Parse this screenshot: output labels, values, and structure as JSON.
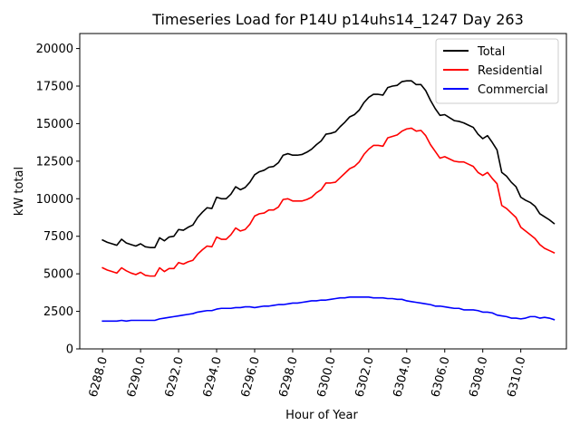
{
  "chart_data": {
    "type": "line",
    "title": "Timeseries Load for P14U p14uhs14_1247  Day 263",
    "xlabel": "Hour of Year",
    "ylabel": "kW total",
    "xlim": [
      6286.8,
      6312.4
    ],
    "ylim": [
      0,
      21000
    ],
    "grid": false,
    "legend_position": "top-right",
    "x_ticks": [
      6288,
      6290,
      6292,
      6294,
      6296,
      6298,
      6300,
      6302,
      6304,
      6306,
      6308,
      6310
    ],
    "x_tick_labels": [
      "6288.0",
      "6290.0",
      "6292.0",
      "6294.0",
      "6296.0",
      "6298.0",
      "6300.0",
      "6302.0",
      "6304.0",
      "6306.0",
      "6308.0",
      "6310.0"
    ],
    "y_ticks": [
      0,
      2500,
      5000,
      7500,
      10000,
      12500,
      15000,
      17500,
      20000
    ],
    "y_tick_labels": [
      "0",
      "2500",
      "5000",
      "7500",
      "10000",
      "12500",
      "15000",
      "17500",
      "20000"
    ],
    "x_start": 6288,
    "x_step": 0.25,
    "series": [
      {
        "name": "Total",
        "color": "#000000",
        "values": [
          7250,
          7100,
          7000,
          6900,
          7300,
          7050,
          6950,
          6850,
          7000,
          6800,
          6750,
          6750,
          7400,
          7200,
          7450,
          7500,
          7950,
          7900,
          8100,
          8250,
          8750,
          9100,
          9400,
          9350,
          10100,
          10000,
          10000,
          10300,
          10800,
          10600,
          10750,
          11100,
          11600,
          11800,
          11900,
          12100,
          12150,
          12400,
          12900,
          13000,
          12900,
          12900,
          12950,
          13100,
          13300,
          13600,
          13850,
          14300,
          14350,
          14450,
          14800,
          15100,
          15450,
          15600,
          15900,
          16400,
          16750,
          16950,
          16950,
          16900,
          17400,
          17500,
          17550,
          17800,
          17850,
          17850,
          17600,
          17600,
          17200,
          16550,
          16000,
          15550,
          15600,
          15400,
          15200,
          15150,
          15050,
          14900,
          14750,
          14300,
          14000,
          14200,
          13750,
          13250,
          11750,
          11500,
          11100,
          10800,
          10100,
          9900,
          9750,
          9500,
          9000,
          8800,
          8600,
          8350
        ]
      },
      {
        "name": "Residential",
        "color": "#ff0000",
        "values": [
          5400,
          5250,
          5150,
          5050,
          5400,
          5200,
          5050,
          4950,
          5100,
          4900,
          4850,
          4850,
          5400,
          5150,
          5350,
          5350,
          5750,
          5650,
          5800,
          5900,
          6300,
          6600,
          6850,
          6800,
          7450,
          7300,
          7300,
          7600,
          8050,
          7850,
          7950,
          8300,
          8850,
          9000,
          9050,
          9250,
          9250,
          9450,
          9950,
          10000,
          9850,
          9850,
          9850,
          9950,
          10100,
          10400,
          10600,
          11050,
          11050,
          11100,
          11400,
          11700,
          12000,
          12150,
          12450,
          12950,
          13300,
          13550,
          13550,
          13500,
          14050,
          14150,
          14250,
          14500,
          14650,
          14700,
          14500,
          14550,
          14200,
          13600,
          13150,
          12700,
          12800,
          12650,
          12500,
          12450,
          12450,
          12300,
          12150,
          11750,
          11550,
          11750,
          11350,
          11000,
          9550,
          9350,
          9050,
          8750,
          8100,
          7850,
          7600,
          7350,
          6950,
          6700,
          6550,
          6400
        ]
      },
      {
        "name": "Commercial",
        "color": "#0000ff",
        "values": [
          1850,
          1850,
          1850,
          1850,
          1900,
          1850,
          1900,
          1900,
          1900,
          1900,
          1900,
          1900,
          2000,
          2050,
          2100,
          2150,
          2200,
          2250,
          2300,
          2350,
          2450,
          2500,
          2550,
          2550,
          2650,
          2700,
          2700,
          2700,
          2750,
          2750,
          2800,
          2800,
          2750,
          2800,
          2850,
          2850,
          2900,
          2950,
          2950,
          3000,
          3050,
          3050,
          3100,
          3150,
          3200,
          3200,
          3250,
          3250,
          3300,
          3350,
          3400,
          3400,
          3450,
          3450,
          3450,
          3450,
          3450,
          3400,
          3400,
          3400,
          3350,
          3350,
          3300,
          3300,
          3200,
          3150,
          3100,
          3050,
          3000,
          2950,
          2850,
          2850,
          2800,
          2750,
          2700,
          2700,
          2600,
          2600,
          2600,
          2550,
          2450,
          2450,
          2400,
          2250,
          2200,
          2150,
          2050,
          2050,
          2000,
          2050,
          2150,
          2150,
          2050,
          2100,
          2050,
          1950
        ]
      }
    ]
  }
}
